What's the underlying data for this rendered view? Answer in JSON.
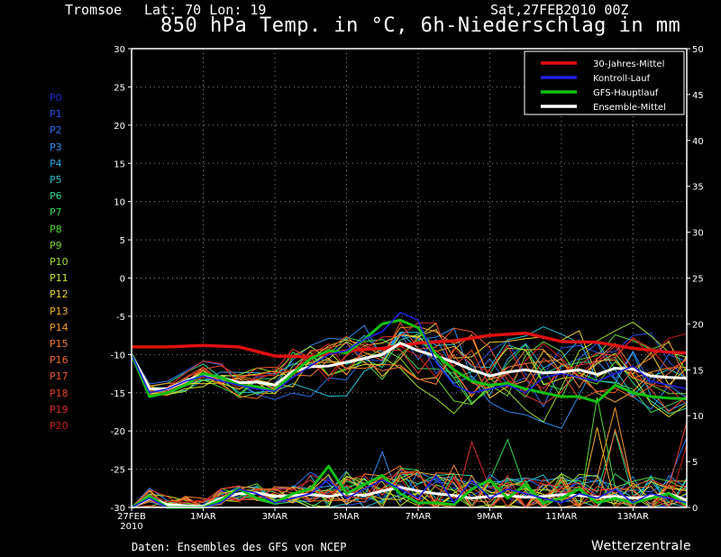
{
  "header": {
    "location": "Tromsoe",
    "coords": "Lat: 70 Lon: 19",
    "date": "Sat,27FEB2010 00Z",
    "title": "850 hPa Temp. in °C, 6h-Niederschlag in mm"
  },
  "members": [
    "P0",
    "P1",
    "P2",
    "P3",
    "P4",
    "P5",
    "P6",
    "P7",
    "P8",
    "P9",
    "P10",
    "P11",
    "P12",
    "P13",
    "P14",
    "P15",
    "P16",
    "P17",
    "P18",
    "P19",
    "P20"
  ],
  "member_colors": [
    "#1f2bd6",
    "#2550e6",
    "#2a6fee",
    "#2b8ff0",
    "#26a9e8",
    "#22c3d3",
    "#2bd68c",
    "#34d957",
    "#52d637",
    "#75d62c",
    "#9ede2a",
    "#cbe22a",
    "#ecd42a",
    "#f2b62a",
    "#f29a2a",
    "#f2812a",
    "#ee6a2a",
    "#e9552a",
    "#e5402a",
    "#de2a2a",
    "#c81e1e"
  ],
  "footer": {
    "source": "Daten: Ensembles des GFS von NCEP",
    "brand": "Wetterzentrale"
  },
  "chart_data": {
    "type": "line",
    "title": "850 hPa Temp. in °C, 6h-Niederschlag in mm",
    "x_tick_labels": [
      "27FEB",
      "1MAR",
      "3MAR",
      "5MAR",
      "7MAR",
      "9MAR",
      "11MAR",
      "13MAR"
    ],
    "x_tick_sublabel": "2010",
    "x_tick_days": [
      0,
      2,
      4,
      6,
      8,
      10,
      12,
      14
    ],
    "xlim_days": [
      0,
      15.5
    ],
    "y_left": {
      "label": "850 hPa Temp. °C",
      "ylim": [
        -30,
        30
      ],
      "ticks": [
        -30,
        -25,
        -20,
        -15,
        -10,
        -5,
        0,
        5,
        10,
        15,
        20,
        25,
        30
      ]
    },
    "y_right": {
      "label": "6h-Niederschlag mm",
      "ylim": [
        0,
        50
      ],
      "ticks": [
        0,
        5,
        10,
        15,
        20,
        25,
        30,
        35,
        40,
        45,
        50
      ]
    },
    "grid": true,
    "legend_position": "top-right",
    "legend": [
      {
        "name": "30-Jahres-Mittel",
        "color": "#e01010"
      },
      {
        "name": "Kontroll-Lauf",
        "color": "#2020e0"
      },
      {
        "name": "GFS-Hauptlauf",
        "color": "#10c010"
      },
      {
        "name": "Ensemble-Mittel",
        "color": "#ffffff"
      }
    ],
    "series_temperature": [
      {
        "name": "30-Jahres-Mittel",
        "color": "#e01010",
        "width": 3.5,
        "x": [
          0,
          1,
          2,
          3,
          4,
          5,
          6,
          7,
          8,
          9,
          10,
          11,
          12,
          13,
          14,
          15,
          15.5
        ],
        "y": [
          -9,
          -9,
          -8.8,
          -9,
          -10.2,
          -10.3,
          -9.5,
          -9.2,
          -8.5,
          -8.2,
          -7.5,
          -7.2,
          -8.3,
          -8.4,
          -9.2,
          -9.7,
          -9.8
        ]
      },
      {
        "name": "Ensemble-Mittel",
        "color": "#ffffff",
        "width": 3,
        "x": [
          0,
          0.5,
          1,
          1.5,
          2,
          2.5,
          3,
          3.5,
          4,
          4.5,
          5,
          5.5,
          6,
          6.5,
          7,
          7.5,
          8,
          8.5,
          9,
          9.5,
          10,
          10.5,
          11,
          11.5,
          12,
          12.5,
          13,
          13.5,
          14,
          14.5,
          15,
          15.5
        ],
        "y": [
          -10,
          -14.5,
          -14.5,
          -13.5,
          -12.6,
          -13,
          -13.7,
          -13.6,
          -14,
          -12.2,
          -11.6,
          -11.5,
          -11,
          -10.5,
          -10,
          -8.5,
          -9.5,
          -10.2,
          -11,
          -12,
          -12.8,
          -12.3,
          -12,
          -12.4,
          -12.3,
          -12,
          -12.6,
          -11.8,
          -11.9,
          -12.8,
          -13,
          -13.1
        ]
      },
      {
        "name": "GFS-Hauptlauf",
        "color": "#10c010",
        "width": 3,
        "x": [
          0,
          0.5,
          1,
          1.5,
          2,
          2.5,
          3,
          3.5,
          4,
          4.5,
          5,
          5.5,
          6,
          6.5,
          7,
          7.5,
          8,
          8.5,
          9,
          9.5,
          10,
          10.5,
          11,
          11.5,
          12,
          12.5,
          13,
          13.5,
          14,
          14.5,
          15,
          15.5
        ],
        "y": [
          -10,
          -15.5,
          -15,
          -14,
          -12.5,
          -13,
          -14,
          -14.2,
          -14.8,
          -12.5,
          -10.5,
          -9.5,
          -9.8,
          -8,
          -6,
          -5.5,
          -6.5,
          -10,
          -12,
          -13.5,
          -14,
          -13.8,
          -14.5,
          -15,
          -15.5,
          -15.5,
          -16.2,
          -14,
          -15,
          -15.5,
          -15.7,
          -15.8
        ]
      },
      {
        "name": "Kontroll-Lauf",
        "color": "#2020e0",
        "width": 1.6,
        "x": [
          0,
          0.5,
          1,
          1.5,
          2,
          2.5,
          3,
          3.5,
          4,
          4.5,
          5,
          5.5,
          6,
          6.5,
          7,
          7.5,
          8,
          8.5,
          9,
          9.5,
          10,
          10.5,
          11,
          11.5,
          12,
          12.5,
          13,
          13.5,
          14,
          14.5,
          15,
          15.5
        ],
        "y": [
          -10,
          -15,
          -14.5,
          -13.5,
          -12.8,
          -13.5,
          -14,
          -14.5,
          -14.8,
          -13,
          -11.5,
          -10,
          -9.5,
          -8,
          -7,
          -4.5,
          -5.5,
          -11,
          -14,
          -15,
          -14.5,
          -14,
          -15,
          -13,
          -12.5,
          -13,
          -13.5,
          -12.5,
          -11.5,
          -13.5,
          -14,
          -14.5
        ]
      }
    ],
    "series_precipitation": [
      {
        "name": "Ensemble-Mittel",
        "color": "#ffffff",
        "width": 3,
        "x": [
          0,
          0.5,
          1,
          1.5,
          2,
          2.5,
          3,
          3.5,
          4,
          4.5,
          5,
          5.5,
          6,
          6.5,
          7,
          7.5,
          8,
          8.5,
          9,
          9.5,
          10,
          10.5,
          11,
          11.5,
          12,
          12.5,
          13,
          13.5,
          14,
          14.5,
          15,
          15.5
        ],
        "y": [
          0,
          1,
          0.3,
          0.2,
          0.1,
          1,
          1.5,
          1.6,
          1.2,
          1.3,
          1.4,
          1.2,
          1.5,
          1.3,
          1.8,
          2.2,
          1.8,
          1.5,
          1.3,
          1,
          1.2,
          1.3,
          1.1,
          1.2,
          1.4,
          1.3,
          1.1,
          1.2,
          1,
          1.2,
          1.5,
          0.8
        ]
      },
      {
        "name": "GFS-Hauptlauf",
        "color": "#10c010",
        "width": 3,
        "x": [
          0,
          0.5,
          1,
          1.5,
          2,
          2.5,
          3,
          3.5,
          4,
          4.5,
          5,
          5.5,
          6,
          6.5,
          7,
          7.5,
          8,
          8.5,
          9,
          9.5,
          10,
          10.5,
          11,
          11.5,
          12,
          12.5,
          13,
          13.5,
          14,
          14.5,
          15,
          15.5
        ],
        "y": [
          0,
          1.2,
          0,
          0,
          0,
          0.8,
          2,
          1,
          0.5,
          1.5,
          2,
          4.5,
          1.5,
          2.5,
          3.5,
          1.5,
          0.5,
          0.5,
          0.3,
          2,
          3,
          1,
          2.5,
          0.5,
          1,
          2,
          0.5,
          1,
          0.5,
          1,
          1.5,
          0.3
        ]
      },
      {
        "name": "Kontroll-Lauf",
        "color": "#2020e0",
        "width": 1.6,
        "x": [
          0,
          0.5,
          1,
          1.5,
          2,
          2.5,
          3,
          3.5,
          4,
          4.5,
          5,
          5.5,
          6,
          6.5,
          7,
          7.5,
          8,
          8.5,
          9,
          9.5,
          10,
          10.5,
          11,
          11.5,
          12,
          12.5,
          13,
          13.5,
          14,
          14.5,
          15,
          15.5
        ],
        "y": [
          0,
          1,
          0,
          0,
          0,
          0.5,
          2,
          1.5,
          0.5,
          1,
          1.5,
          3,
          1,
          2,
          3,
          2,
          1,
          3.5,
          0.5,
          3,
          1,
          2,
          1.5,
          1,
          0.5,
          1.5,
          1,
          2,
          0.5,
          1.5,
          1,
          0.5
        ]
      }
    ]
  }
}
